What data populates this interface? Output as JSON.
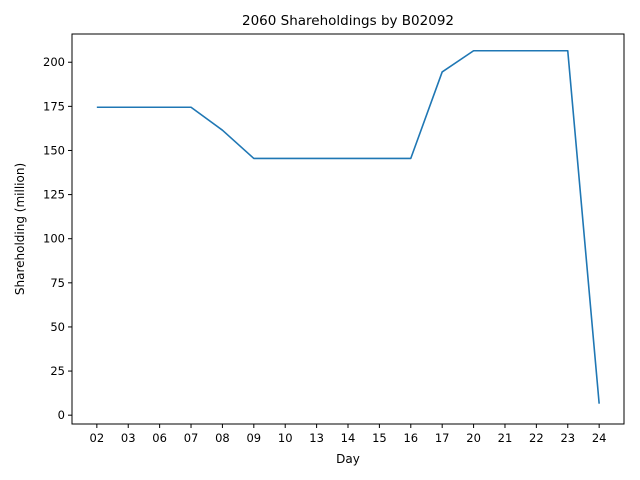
{
  "chart_data": {
    "type": "line",
    "title": "2060 Shareholdings by B02092",
    "xlabel": "Day",
    "ylabel": "Shareholding (million)",
    "categories": [
      "02",
      "03",
      "06",
      "07",
      "08",
      "09",
      "10",
      "13",
      "14",
      "15",
      "16",
      "17",
      "20",
      "21",
      "22",
      "23",
      "24"
    ],
    "yticks": [
      "0",
      "25",
      "50",
      "75",
      "100",
      "125",
      "150",
      "175",
      "200"
    ],
    "ylim": [
      -5,
      216
    ],
    "grid": false,
    "series": [
      {
        "values": [
          174.5,
          174.5,
          174.5,
          174.5,
          161.5,
          145.5,
          145.5,
          145.5,
          145.5,
          145.5,
          145.5,
          194.5,
          206.5,
          206.5,
          206.5,
          206.5,
          6.5
        ],
        "color": "#1f77b4"
      }
    ]
  }
}
